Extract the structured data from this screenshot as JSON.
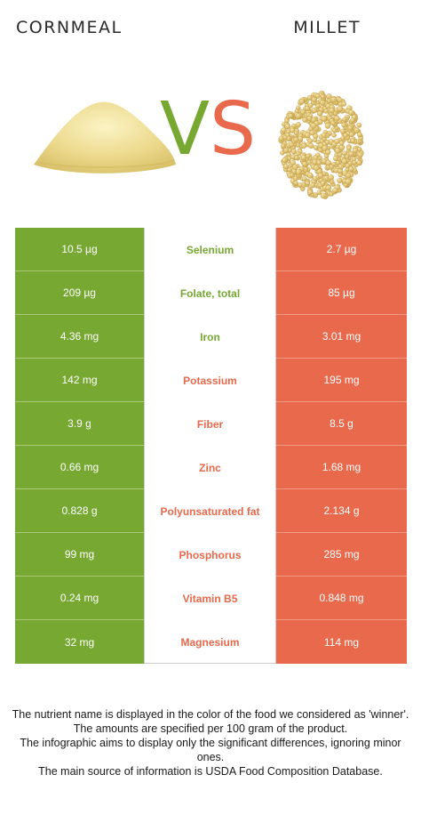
{
  "foods": {
    "left": {
      "name": "CORNMEAL",
      "color": "#76a832"
    },
    "right": {
      "name": "MILLET",
      "color": "#e8694b"
    }
  },
  "vs": {
    "v": "V",
    "s": "S"
  },
  "rows": [
    {
      "left": "10.5 µg",
      "nutrient": "Selenium",
      "right": "2.7 µg",
      "winner": "left"
    },
    {
      "left": "209 µg",
      "nutrient": "Folate, total",
      "right": "85 µg",
      "winner": "left"
    },
    {
      "left": "4.36 mg",
      "nutrient": "Iron",
      "right": "3.01 mg",
      "winner": "left"
    },
    {
      "left": "142 mg",
      "nutrient": "Potassium",
      "right": "195 mg",
      "winner": "right"
    },
    {
      "left": "3.9 g",
      "nutrient": "Fiber",
      "right": "8.5 g",
      "winner": "right"
    },
    {
      "left": "0.66 mg",
      "nutrient": "Zinc",
      "right": "1.68 mg",
      "winner": "right"
    },
    {
      "left": "0.828 g",
      "nutrient": "Polyunsaturated fat",
      "right": "2.134 g",
      "winner": "right"
    },
    {
      "left": "99 mg",
      "nutrient": "Phosphorus",
      "right": "285 mg",
      "winner": "right"
    },
    {
      "left": "0.24 mg",
      "nutrient": "Vitamin B5",
      "right": "0.848 mg",
      "winner": "right"
    },
    {
      "left": "32 mg",
      "nutrient": "Magnesium",
      "right": "114 mg",
      "winner": "right"
    }
  ],
  "footer": [
    "The nutrient name is displayed in the color of the food we considered as 'winner'.",
    "The amounts are specified per 100 gram of the product.",
    "The infographic aims to display only the significant differences, ignoring minor ones.",
    "The main source of information is USDA Food Composition Database."
  ]
}
